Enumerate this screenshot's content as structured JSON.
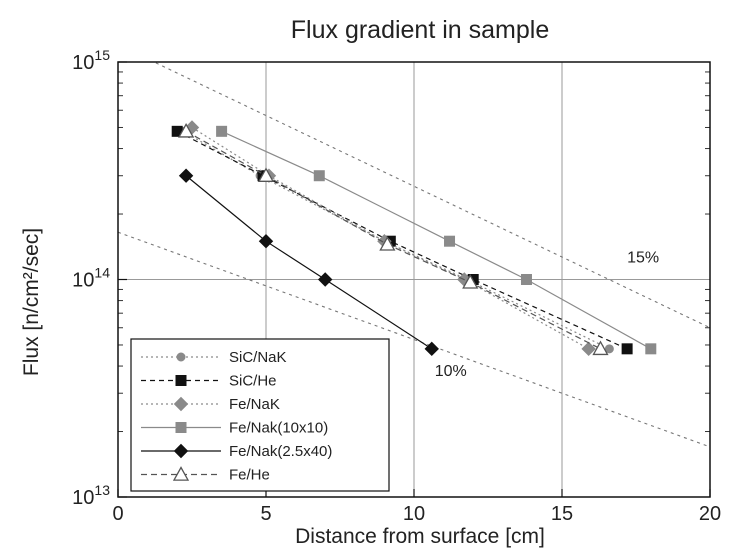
{
  "chart_data": {
    "type": "line",
    "title": "Flux gradient in sample",
    "xlabel": "Distance from surface [cm]",
    "ylabel": "Flux [n/cm²/sec]",
    "xlim": [
      0,
      20
    ],
    "ylim": [
      10000000000000.0,
      1000000000000000.0
    ],
    "yscale": "log",
    "grid": true,
    "legend_position": "bottom-left",
    "x_ticks": [
      0,
      5,
      10,
      15,
      20
    ],
    "y_ticks": [
      {
        "value": 10000000000000.0,
        "base": "10",
        "exp": "13"
      },
      {
        "value": 100000000000000.0,
        "base": "10",
        "exp": "14"
      },
      {
        "value": 1000000000000000.0,
        "base": "10",
        "exp": "15"
      }
    ],
    "series": [
      {
        "name": "SiC/NaK",
        "marker": "circle",
        "color": "#8a8a8a",
        "dash": "2,3",
        "x": [
          2.2,
          4.8,
          9.0,
          11.8,
          16.6
        ],
        "y": [
          480000000000000.0,
          300000000000000.0,
          150000000000000.0,
          100000000000000.0,
          48000000000000.0
        ]
      },
      {
        "name": "SiC/He",
        "marker": "square",
        "color": "#111111",
        "dash": "5,4",
        "x": [
          2.0,
          4.9,
          9.2,
          12.0,
          17.2
        ],
        "y": [
          480000000000000.0,
          300000000000000.0,
          150000000000000.0,
          100000000000000.0,
          48000000000000.0
        ]
      },
      {
        "name": "Fe/NaK",
        "marker": "diamond",
        "color": "#8a8a8a",
        "dash": "2,3",
        "x": [
          2.5,
          5.1,
          9.0,
          11.7,
          15.9
        ],
        "y": [
          500000000000000.0,
          300000000000000.0,
          150000000000000.0,
          100000000000000.0,
          48000000000000.0
        ]
      },
      {
        "name": "Fe/Nak(10x10)",
        "marker": "square",
        "color": "#8a8a8a",
        "dash": "",
        "x": [
          3.5,
          6.8,
          11.2,
          13.8,
          18.0
        ],
        "y": [
          480000000000000.0,
          300000000000000.0,
          150000000000000.0,
          100000000000000.0,
          48000000000000.0
        ]
      },
      {
        "name": "Fe/Nak(2.5x40)",
        "marker": "diamond",
        "color": "#111111",
        "dash": "",
        "x": [
          2.3,
          5.0,
          7.0,
          10.6
        ],
        "y": [
          300000000000000.0,
          150000000000000.0,
          100000000000000.0,
          48000000000000.0
        ]
      },
      {
        "name": "Fe/He",
        "marker": "triangle",
        "color": "#555555",
        "dash": "6,4",
        "x": [
          2.3,
          5.0,
          9.1,
          11.9,
          16.3
        ],
        "y": [
          480000000000000.0,
          300000000000000.0,
          145000000000000.0,
          97000000000000.0,
          48000000000000.0
        ]
      }
    ],
    "reference_lines": [
      {
        "label": "15%",
        "x": [
          0,
          20
        ],
        "y": [
          1200000000000000.0,
          60000000000000.0
        ],
        "label_x": 17.2,
        "label_y": 120000000000000.0
      },
      {
        "label": "10%",
        "x": [
          0,
          20
        ],
        "y": [
          165000000000000.0,
          17000000000000.0
        ],
        "label_x": 10.7,
        "label_y": 36000000000000.0
      }
    ]
  }
}
